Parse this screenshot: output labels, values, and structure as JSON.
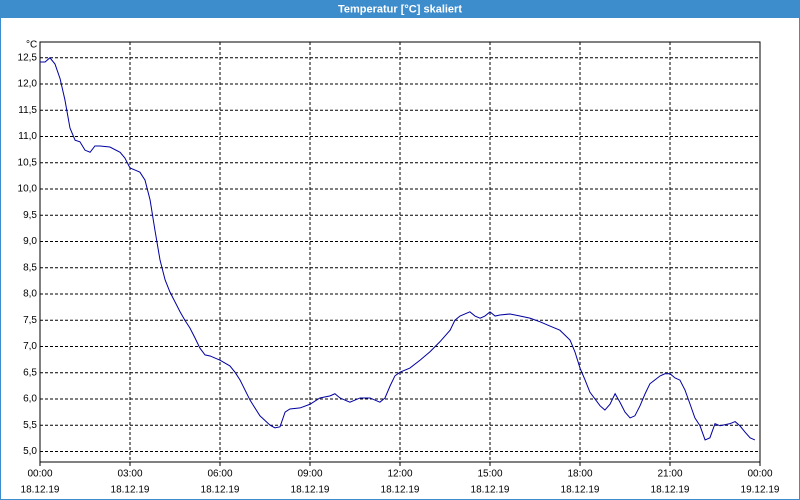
{
  "chart_data": {
    "type": "line",
    "title": "Temperatur [°C] skaliert",
    "y_unit": "°C",
    "x": [
      0,
      0.17,
      0.33,
      0.5,
      0.67,
      0.83,
      1,
      1.17,
      1.33,
      1.5,
      1.67,
      1.83,
      2,
      2.33,
      2.67,
      2.83,
      3,
      3.17,
      3.33,
      3.5,
      3.67,
      3.83,
      4,
      4.17,
      4.33,
      4.5,
      4.67,
      4.83,
      5,
      5.17,
      5.33,
      5.5,
      5.67,
      6,
      6.33,
      6.5,
      6.67,
      7,
      7.33,
      7.67,
      7.83,
      8,
      8.17,
      8.33,
      8.67,
      9,
      9.33,
      9.67,
      9.83,
      10,
      10.33,
      10.67,
      11,
      11.33,
      11.5,
      11.67,
      11.83,
      12,
      12.33,
      12.67,
      13,
      13.33,
      13.67,
      13.83,
      14,
      14.33,
      14.5,
      14.67,
      14.83,
      15,
      15.17,
      15.33,
      15.67,
      16,
      16.33,
      16.67,
      17,
      17.33,
      17.67,
      17.83,
      18,
      18.17,
      18.33,
      18.67,
      18.83,
      19,
      19.17,
      19.33,
      19.5,
      19.67,
      19.83,
      20,
      20.17,
      20.33,
      20.67,
      20.83,
      21,
      21.17,
      21.33,
      21.5,
      21.67,
      21.83,
      22,
      22.17,
      22.33,
      22.5,
      22.67,
      23,
      23.17,
      23.33,
      23.5,
      23.67,
      23.83
    ],
    "series": [
      {
        "color": "#0000a0",
        "values": [
          12.42,
          12.42,
          12.5,
          12.38,
          12.1,
          11.7,
          11.16,
          10.93,
          10.9,
          10.74,
          10.7,
          10.82,
          10.82,
          10.8,
          10.7,
          10.59,
          10.4,
          10.36,
          10.32,
          10.17,
          9.79,
          9.22,
          8.65,
          8.27,
          8.04,
          7.85,
          7.66,
          7.5,
          7.35,
          7.16,
          6.97,
          6.84,
          6.82,
          6.74,
          6.63,
          6.51,
          6.36,
          5.98,
          5.68,
          5.5,
          5.45,
          5.47,
          5.75,
          5.81,
          5.83,
          5.9,
          6.02,
          6.06,
          6.1,
          6.02,
          5.94,
          6.02,
          6.02,
          5.94,
          6.02,
          6.25,
          6.44,
          6.51,
          6.59,
          6.74,
          6.9,
          7.09,
          7.31,
          7.5,
          7.58,
          7.66,
          7.58,
          7.54,
          7.58,
          7.66,
          7.58,
          7.6,
          7.62,
          7.58,
          7.54,
          7.47,
          7.39,
          7.31,
          7.12,
          6.9,
          6.59,
          6.36,
          6.13,
          5.87,
          5.79,
          5.9,
          6.1,
          5.94,
          5.75,
          5.64,
          5.68,
          5.87,
          6.1,
          6.29,
          6.44,
          6.48,
          6.48,
          6.4,
          6.36,
          6.17,
          5.9,
          5.64,
          5.49,
          5.22,
          5.26,
          5.53,
          5.49,
          5.53,
          5.57,
          5.49,
          5.37,
          5.26,
          5.22
        ]
      }
    ],
    "xlim": [
      0,
      24
    ],
    "xticks": [
      {
        "value": 0,
        "label": [
          "00:00",
          "18.12.19"
        ]
      },
      {
        "value": 3,
        "label": [
          "03:00",
          "18.12.19"
        ]
      },
      {
        "value": 6,
        "label": [
          "06:00",
          "18.12.19"
        ]
      },
      {
        "value": 9,
        "label": [
          "09:00",
          "18.12.19"
        ]
      },
      {
        "value": 12,
        "label": [
          "12:00",
          "18.12.19"
        ]
      },
      {
        "value": 15,
        "label": [
          "15:00",
          "18.12.19"
        ]
      },
      {
        "value": 18,
        "label": [
          "18:00",
          "18.12.19"
        ]
      },
      {
        "value": 21,
        "label": [
          "21:00",
          "18.12.19"
        ]
      },
      {
        "value": 24,
        "label": [
          "00:00",
          "19.12.19"
        ]
      }
    ],
    "ylim": [
      4.8,
      12.8
    ],
    "yticks": [
      {
        "value": 5,
        "label": "5,0"
      },
      {
        "value": 5.5,
        "label": "5,5"
      },
      {
        "value": 6,
        "label": "6,0"
      },
      {
        "value": 6.5,
        "label": "6,5"
      },
      {
        "value": 7,
        "label": "7,0"
      },
      {
        "value": 7.5,
        "label": "7,5"
      },
      {
        "value": 8,
        "label": "8,0"
      },
      {
        "value": 8.5,
        "label": "8,5"
      },
      {
        "value": 9,
        "label": "9,0"
      },
      {
        "value": 9.5,
        "label": "9,5"
      },
      {
        "value": 10,
        "label": "10,0"
      },
      {
        "value": 10.5,
        "label": "10,5"
      },
      {
        "value": 11,
        "label": "11,0"
      },
      {
        "value": 11.5,
        "label": "11,5"
      },
      {
        "value": 12,
        "label": "12,0"
      },
      {
        "value": 12.5,
        "label": "12,5"
      }
    ],
    "grid": true
  }
}
